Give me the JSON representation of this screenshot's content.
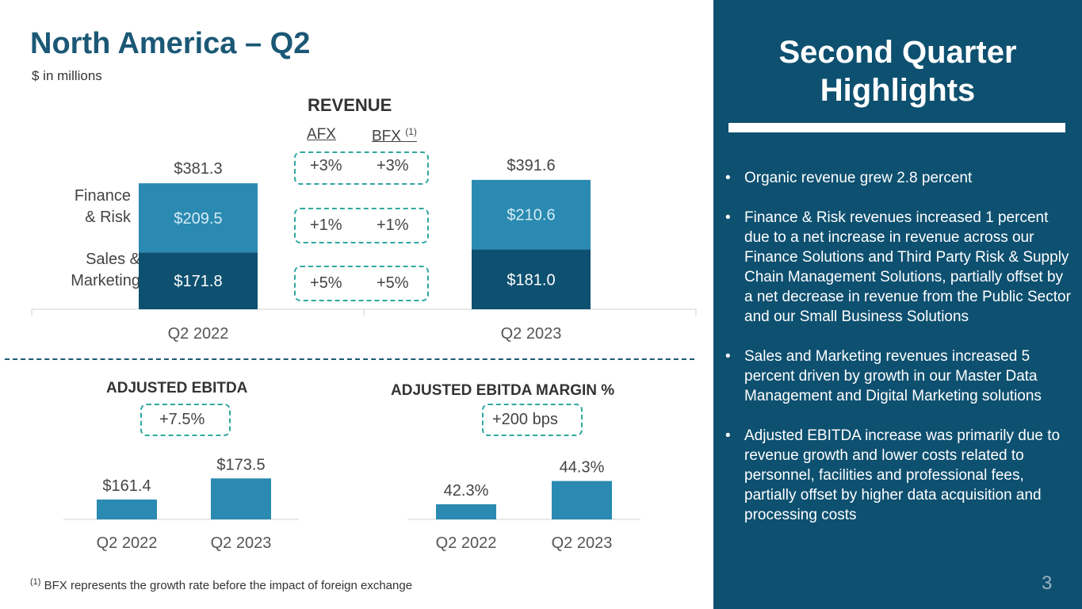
{
  "page": {
    "title": "North America – Q2",
    "subtitle": "$ in millions",
    "page_number": "3",
    "footnote_marker": "(1)",
    "footnote_text": "BFX represents the growth rate before the impact of foreign exchange"
  },
  "revenue": {
    "section_title": "REVENUE",
    "afx_header": "AFX",
    "bfx_header": "BFX",
    "bfx_marker": "(1)",
    "segment_labels": {
      "finance": "Finance\n& Risk",
      "sales": "Sales &\nMarketing"
    },
    "growth": [
      {
        "segment": "Total",
        "afx": "+3%",
        "bfx": "+3%"
      },
      {
        "segment": "Finance & Risk",
        "afx": "+1%",
        "bfx": "+1%"
      },
      {
        "segment": "Sales & Marketing",
        "afx": "+5%",
        "bfx": "+5%"
      }
    ]
  },
  "ebitda": {
    "title": "ADJUSTED EBITDA",
    "growth": "+7.5%"
  },
  "margin": {
    "title": "ADJUSTED EBITDA MARGIN %",
    "growth": "+200 bps"
  },
  "sidebar": {
    "title": "Second Quarter Highlights",
    "highlights": [
      "Organic revenue grew 2.8 percent",
      "Finance & Risk revenues increased 1 percent due to a net increase in revenue across our Finance Solutions and Third Party Risk & Supply Chain Management Solutions, partially offset by a net decrease in revenue from the Public Sector and our Small Business Solutions",
      "Sales and Marketing revenues increased 5 percent driven by growth in our Master Data Management and Digital Marketing solutions",
      "Adjusted EBITDA increase was primarily due to revenue growth and lower costs related to personnel, facilities and professional fees, partially offset by higher data acquisition and processing costs"
    ]
  },
  "colors": {
    "dark_blue": "#0e5070",
    "light_blue": "#2a8ab1",
    "teal": "#2fa8a0",
    "title_blue": "#1b5876"
  },
  "chart_data": [
    {
      "type": "bar",
      "stacked": true,
      "title": "REVENUE",
      "categories": [
        "Q2 2022",
        "Q2 2023"
      ],
      "series": [
        {
          "name": "Sales & Marketing",
          "values": [
            171.8,
            181.0
          ],
          "labels": [
            "$171.8",
            "$181.0"
          ]
        },
        {
          "name": "Finance & Risk",
          "values": [
            209.5,
            210.6
          ],
          "labels": [
            "$209.5",
            "$210.6"
          ]
        }
      ],
      "totals": [
        381.3,
        391.6
      ],
      "total_labels": [
        "$381.3",
        "$391.6"
      ],
      "ylim": [
        0,
        420
      ]
    },
    {
      "type": "bar",
      "title": "ADJUSTED EBITDA",
      "categories": [
        "Q2 2022",
        "Q2 2023"
      ],
      "values": [
        161.4,
        173.5
      ],
      "labels": [
        "$161.4",
        "$173.5"
      ],
      "ylim": [
        150,
        180
      ]
    },
    {
      "type": "bar",
      "title": "ADJUSTED EBITDA MARGIN %",
      "categories": [
        "Q2 2022",
        "Q2 2023"
      ],
      "values": [
        42.3,
        44.3
      ],
      "labels": [
        "42.3%",
        "44.3%"
      ],
      "ylim": [
        41.0,
        45.5
      ]
    }
  ]
}
